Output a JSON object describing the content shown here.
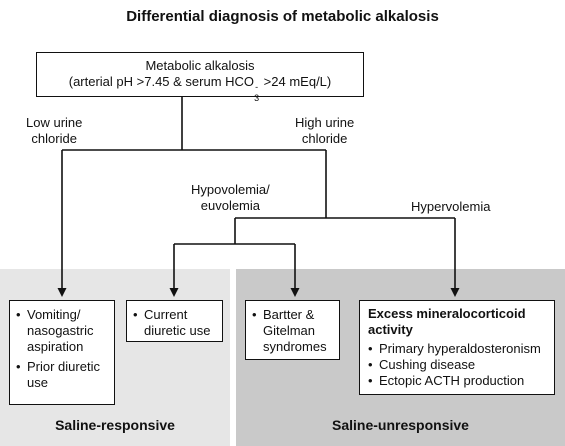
{
  "title": "Differential diagnosis of metabolic alkalosis",
  "top_box": {
    "line1": "Metabolic alkalosis",
    "line2_pre": "(arterial pH >7.45 & serum HCO",
    "line2_sub": "3",
    "line2_sup": "-",
    "line2_post": " >24 mEq/L)"
  },
  "branches": {
    "low_urine_chloride": [
      "Low urine",
      "chloride"
    ],
    "high_urine_chloride": [
      "High urine",
      "chloride"
    ],
    "hypovolemia": [
      "Hypovolemia/",
      "euvolemia"
    ],
    "hypervolemia": "Hypervolemia"
  },
  "boxes": {
    "vomiting": [
      "Vomiting/",
      "nasogastric",
      "aspiration"
    ],
    "prior_diuretic": [
      "Prior diuretic",
      "use"
    ],
    "current_diuretic": [
      "Current",
      "diuretic use"
    ],
    "bartter": [
      "Bartter &",
      "Gitelman",
      "syndromes"
    ],
    "excess_title": [
      "Excess mineralocorticoid",
      "activity"
    ],
    "excess_items": [
      "Primary hyperaldosteronism",
      "Cushing disease",
      "Ectopic ACTH production"
    ]
  },
  "panels": {
    "left_label": "Saline-responsive",
    "right_label": "Saline-unresponsive"
  }
}
